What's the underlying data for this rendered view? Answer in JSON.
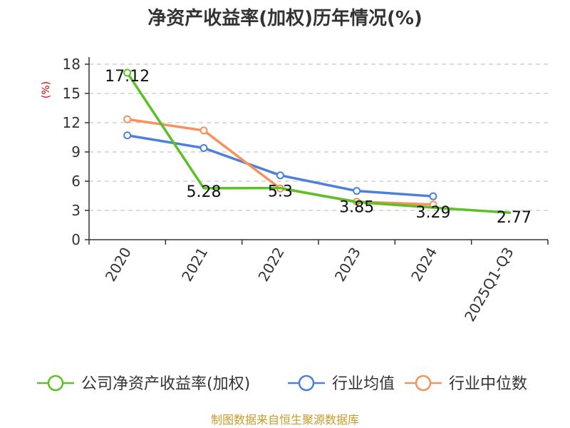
{
  "chart_data": {
    "type": "line",
    "title": "净资产收益率(加权)历年情况(%)",
    "ylabel": "(%)",
    "xlabel": "",
    "categories": [
      "2020",
      "2021",
      "2022",
      "2023",
      "2024",
      "2025Q1-Q3"
    ],
    "y_ticks": [
      "0",
      "3",
      "6",
      "9",
      "12",
      "15",
      "18"
    ],
    "ylim": [
      0,
      18
    ],
    "grid": true,
    "legend_position": "bottom",
    "series": [
      {
        "name": "公司净资产收益率(加权)",
        "color": "#5cc026",
        "values": [
          17.12,
          5.28,
          5.3,
          3.85,
          3.29,
          2.77
        ],
        "labels": [
          "17.12",
          "5.28",
          "5.3",
          "3.85",
          "3.29",
          "2.77"
        ],
        "markers": [
          true,
          false,
          false,
          false,
          false,
          false
        ]
      },
      {
        "name": "行业均值",
        "color": "#4e7fd9",
        "values": [
          10.7,
          9.4,
          6.6,
          5.0,
          4.45,
          null
        ],
        "markers": [
          true,
          true,
          true,
          true,
          true,
          false
        ]
      },
      {
        "name": "行业中位数",
        "color": "#f5925e",
        "values": [
          12.35,
          11.2,
          5.25,
          3.9,
          3.6,
          null
        ],
        "markers": [
          true,
          true,
          true,
          true,
          true,
          false
        ]
      }
    ]
  },
  "source": "制图数据来自恒生聚源数据库"
}
